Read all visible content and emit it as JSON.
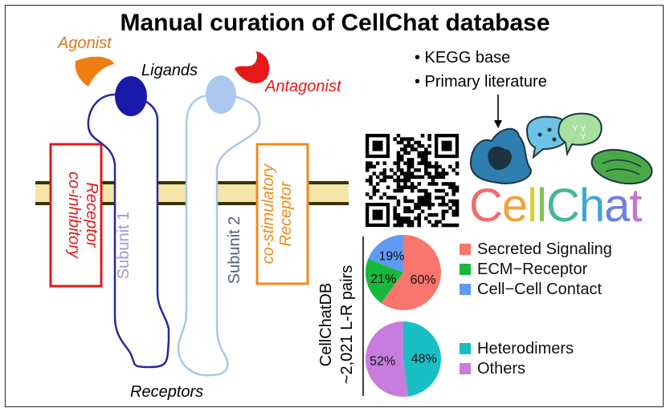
{
  "title": "Manual curation of CellChat database",
  "labels": {
    "agonist": "Agonist",
    "antagonist": "Antagonist",
    "ligands": "Ligands",
    "receptors": "Receptors",
    "subunit1": "Subunit 1",
    "subunit2": "Subunit 2",
    "co_inhibitory_line1": "co-inhibitory",
    "co_inhibitory_line2": "Receptor",
    "co_stimulatory_line1": "co-stimulatory",
    "co_stimulatory_line2": "Receptor"
  },
  "sources": [
    "• KEGG base",
    "• Primary literature"
  ],
  "logo": {
    "text": "CellChat"
  },
  "db_label": {
    "line1": "CellChatDB",
    "line2": "~2,021 L-R pairs"
  },
  "colors": {
    "agonist": "#f07d12",
    "antagonist": "#e81818",
    "subunit1": "#2a2a9a",
    "subunit2": "#a8c8ea",
    "co_inhibitory": "#e01a1a",
    "co_stimulatory": "#f08a1a",
    "membrane": "#f3e6a8"
  },
  "chart_data": [
    {
      "type": "pie",
      "categories": [
        "Secreted Signaling",
        "ECM−Receptor",
        "Cell−Cell Contact"
      ],
      "values": [
        60,
        21,
        19
      ],
      "value_labels": [
        "60%",
        "21%",
        "19%"
      ],
      "colors": [
        "#f8766d",
        "#18b83a",
        "#5f9af2"
      ],
      "legend_position": "right"
    },
    {
      "type": "pie",
      "categories": [
        "Heterodimers",
        "Others"
      ],
      "values": [
        48,
        52
      ],
      "value_labels": [
        "48%",
        "52%"
      ],
      "colors": [
        "#19bfc4",
        "#c77cde"
      ],
      "legend_position": "right"
    }
  ]
}
